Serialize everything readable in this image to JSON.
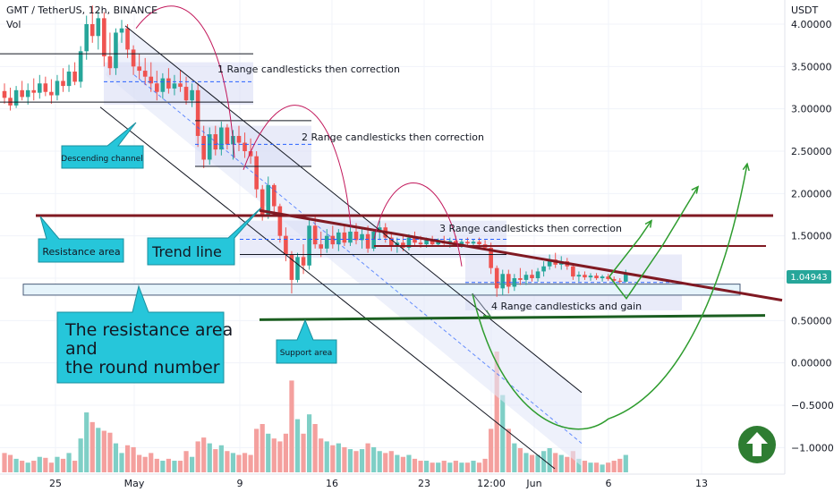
{
  "header": {
    "symbol_line": "GMT / TetherUS, 12h, BINANCE",
    "volume_label": "Vol",
    "currency_label": "USDT"
  },
  "chart_data": {
    "type": "candlestick",
    "symbol": "GMT / TetherUS",
    "interval": "12h",
    "exchange": "BINANCE",
    "y_axis": {
      "unit": "USDT",
      "range": [
        -1.3,
        4.15
      ],
      "ticks": [
        "4.00000",
        "3.50000",
        "3.00000",
        "2.50000",
        "2.00000",
        "1.50000",
        "1.00000",
        "0.50000",
        "0.00000",
        "−0.50000",
        "−1.00000"
      ]
    },
    "x_axis": {
      "ticks": [
        "25",
        "May",
        "9",
        "16",
        "23",
        "12:00",
        "Jun",
        "6",
        "13"
      ]
    },
    "last_price": "1.04943",
    "candles": [
      {
        "o": 3.21,
        "h": 3.3,
        "l": 3.06,
        "c": 3.13,
        "v": 0.2
      },
      {
        "o": 3.13,
        "h": 3.25,
        "l": 2.98,
        "c": 3.04,
        "v": 0.18
      },
      {
        "o": 3.04,
        "h": 3.27,
        "l": 3.01,
        "c": 3.22,
        "v": 0.14
      },
      {
        "o": 3.22,
        "h": 3.33,
        "l": 3.1,
        "c": 3.14,
        "v": 0.12
      },
      {
        "o": 3.14,
        "h": 3.3,
        "l": 3.05,
        "c": 3.22,
        "v": 0.1
      },
      {
        "o": 3.22,
        "h": 3.36,
        "l": 3.1,
        "c": 3.19,
        "v": 0.12
      },
      {
        "o": 3.19,
        "h": 3.4,
        "l": 3.12,
        "c": 3.3,
        "v": 0.16
      },
      {
        "o": 3.3,
        "h": 3.38,
        "l": 3.15,
        "c": 3.2,
        "v": 0.15
      },
      {
        "o": 3.2,
        "h": 3.35,
        "l": 3.06,
        "c": 3.16,
        "v": 0.1
      },
      {
        "o": 3.16,
        "h": 3.4,
        "l": 3.1,
        "c": 3.33,
        "v": 0.16
      },
      {
        "o": 3.33,
        "h": 3.48,
        "l": 3.2,
        "c": 3.27,
        "v": 0.14
      },
      {
        "o": 3.27,
        "h": 3.52,
        "l": 3.2,
        "c": 3.44,
        "v": 0.2
      },
      {
        "o": 3.44,
        "h": 3.55,
        "l": 3.28,
        "c": 3.32,
        "v": 0.12
      },
      {
        "o": 3.32,
        "h": 3.74,
        "l": 3.25,
        "c": 3.68,
        "v": 0.35
      },
      {
        "o": 3.68,
        "h": 4.1,
        "l": 3.58,
        "c": 4.0,
        "v": 0.62
      },
      {
        "o": 4.0,
        "h": 4.22,
        "l": 3.78,
        "c": 3.86,
        "v": 0.52
      },
      {
        "o": 3.86,
        "h": 4.15,
        "l": 3.7,
        "c": 4.07,
        "v": 0.46
      },
      {
        "o": 4.07,
        "h": 4.14,
        "l": 3.5,
        "c": 3.62,
        "v": 0.43
      },
      {
        "o": 3.62,
        "h": 3.9,
        "l": 3.4,
        "c": 3.48,
        "v": 0.41
      },
      {
        "o": 3.48,
        "h": 3.95,
        "l": 3.4,
        "c": 3.9,
        "v": 0.3
      },
      {
        "o": 3.9,
        "h": 4.05,
        "l": 3.78,
        "c": 3.95,
        "v": 0.2
      },
      {
        "o": 3.95,
        "h": 4.0,
        "l": 3.6,
        "c": 3.7,
        "v": 0.28
      },
      {
        "o": 3.7,
        "h": 3.75,
        "l": 3.4,
        "c": 3.5,
        "v": 0.26
      },
      {
        "o": 3.5,
        "h": 3.65,
        "l": 3.35,
        "c": 3.45,
        "v": 0.18
      },
      {
        "o": 3.45,
        "h": 3.6,
        "l": 3.28,
        "c": 3.38,
        "v": 0.16
      },
      {
        "o": 3.38,
        "h": 3.55,
        "l": 3.2,
        "c": 3.3,
        "v": 0.2
      },
      {
        "o": 3.3,
        "h": 3.45,
        "l": 3.1,
        "c": 3.2,
        "v": 0.14
      },
      {
        "o": 3.2,
        "h": 3.42,
        "l": 3.12,
        "c": 3.36,
        "v": 0.12
      },
      {
        "o": 3.36,
        "h": 3.48,
        "l": 3.18,
        "c": 3.24,
        "v": 0.14
      },
      {
        "o": 3.24,
        "h": 3.4,
        "l": 3.16,
        "c": 3.3,
        "v": 0.12
      },
      {
        "o": 3.3,
        "h": 3.46,
        "l": 3.2,
        "c": 3.26,
        "v": 0.12
      },
      {
        "o": 3.26,
        "h": 3.38,
        "l": 3.05,
        "c": 3.1,
        "v": 0.22
      },
      {
        "o": 3.1,
        "h": 3.3,
        "l": 3.02,
        "c": 3.22,
        "v": 0.16
      },
      {
        "o": 3.22,
        "h": 3.3,
        "l": 2.55,
        "c": 2.68,
        "v": 0.32
      },
      {
        "o": 2.68,
        "h": 2.8,
        "l": 2.3,
        "c": 2.4,
        "v": 0.36
      },
      {
        "o": 2.4,
        "h": 2.78,
        "l": 2.34,
        "c": 2.7,
        "v": 0.3
      },
      {
        "o": 2.7,
        "h": 2.8,
        "l": 2.45,
        "c": 2.52,
        "v": 0.24
      },
      {
        "o": 2.52,
        "h": 2.85,
        "l": 2.45,
        "c": 2.78,
        "v": 0.28
      },
      {
        "o": 2.78,
        "h": 2.82,
        "l": 2.52,
        "c": 2.58,
        "v": 0.22
      },
      {
        "o": 2.58,
        "h": 2.75,
        "l": 2.4,
        "c": 2.68,
        "v": 0.2
      },
      {
        "o": 2.68,
        "h": 2.8,
        "l": 2.5,
        "c": 2.6,
        "v": 0.18
      },
      {
        "o": 2.6,
        "h": 2.72,
        "l": 2.42,
        "c": 2.5,
        "v": 0.2
      },
      {
        "o": 2.5,
        "h": 2.65,
        "l": 2.35,
        "c": 2.44,
        "v": 0.18
      },
      {
        "o": 2.44,
        "h": 2.5,
        "l": 1.95,
        "c": 2.05,
        "v": 0.45
      },
      {
        "o": 2.05,
        "h": 2.1,
        "l": 1.68,
        "c": 1.75,
        "v": 0.5
      },
      {
        "o": 1.75,
        "h": 2.2,
        "l": 1.7,
        "c": 2.1,
        "v": 0.4
      },
      {
        "o": 2.1,
        "h": 2.12,
        "l": 1.78,
        "c": 1.85,
        "v": 0.35
      },
      {
        "o": 1.85,
        "h": 1.88,
        "l": 1.42,
        "c": 1.5,
        "v": 0.32
      },
      {
        "o": 1.5,
        "h": 1.6,
        "l": 1.2,
        "c": 1.28,
        "v": 0.4
      },
      {
        "o": 1.28,
        "h": 1.32,
        "l": 0.82,
        "c": 0.98,
        "v": 0.95
      },
      {
        "o": 0.98,
        "h": 1.3,
        "l": 0.95,
        "c": 1.25,
        "v": 0.55
      },
      {
        "o": 1.25,
        "h": 1.4,
        "l": 1.05,
        "c": 1.15,
        "v": 0.4
      },
      {
        "o": 1.15,
        "h": 1.7,
        "l": 1.1,
        "c": 1.62,
        "v": 0.6
      },
      {
        "o": 1.62,
        "h": 1.75,
        "l": 1.35,
        "c": 1.4,
        "v": 0.5
      },
      {
        "o": 1.4,
        "h": 1.55,
        "l": 1.25,
        "c": 1.35,
        "v": 0.35
      },
      {
        "o": 1.35,
        "h": 1.58,
        "l": 1.3,
        "c": 1.5,
        "v": 0.32
      },
      {
        "o": 1.5,
        "h": 1.62,
        "l": 1.35,
        "c": 1.4,
        "v": 0.28
      },
      {
        "o": 1.4,
        "h": 1.58,
        "l": 1.32,
        "c": 1.54,
        "v": 0.3
      },
      {
        "o": 1.54,
        "h": 1.62,
        "l": 1.38,
        "c": 1.42,
        "v": 0.26
      },
      {
        "o": 1.42,
        "h": 1.6,
        "l": 1.38,
        "c": 1.55,
        "v": 0.24
      },
      {
        "o": 1.55,
        "h": 1.65,
        "l": 1.4,
        "c": 1.45,
        "v": 0.22
      },
      {
        "o": 1.45,
        "h": 1.6,
        "l": 1.35,
        "c": 1.52,
        "v": 0.24
      },
      {
        "o": 1.52,
        "h": 1.62,
        "l": 1.3,
        "c": 1.35,
        "v": 0.3
      },
      {
        "o": 1.35,
        "h": 1.58,
        "l": 1.32,
        "c": 1.55,
        "v": 0.26
      },
      {
        "o": 1.55,
        "h": 1.68,
        "l": 1.45,
        "c": 1.6,
        "v": 0.22
      },
      {
        "o": 1.6,
        "h": 1.65,
        "l": 1.42,
        "c": 1.48,
        "v": 0.2
      },
      {
        "o": 1.48,
        "h": 1.55,
        "l": 1.32,
        "c": 1.38,
        "v": 0.22
      },
      {
        "o": 1.38,
        "h": 1.48,
        "l": 1.3,
        "c": 1.42,
        "v": 0.18
      },
      {
        "o": 1.42,
        "h": 1.5,
        "l": 1.32,
        "c": 1.36,
        "v": 0.16
      },
      {
        "o": 1.36,
        "h": 1.52,
        "l": 1.33,
        "c": 1.48,
        "v": 0.18
      },
      {
        "o": 1.48,
        "h": 1.55,
        "l": 1.38,
        "c": 1.42,
        "v": 0.14
      },
      {
        "o": 1.42,
        "h": 1.5,
        "l": 1.36,
        "c": 1.4,
        "v": 0.12
      },
      {
        "o": 1.4,
        "h": 1.48,
        "l": 1.36,
        "c": 1.45,
        "v": 0.12
      },
      {
        "o": 1.45,
        "h": 1.5,
        "l": 1.38,
        "c": 1.4,
        "v": 0.1
      },
      {
        "o": 1.4,
        "h": 1.47,
        "l": 1.37,
        "c": 1.43,
        "v": 0.1
      },
      {
        "o": 1.43,
        "h": 1.5,
        "l": 1.38,
        "c": 1.41,
        "v": 0.12
      },
      {
        "o": 1.41,
        "h": 1.48,
        "l": 1.36,
        "c": 1.44,
        "v": 0.1
      },
      {
        "o": 1.44,
        "h": 1.5,
        "l": 1.38,
        "c": 1.4,
        "v": 0.12
      },
      {
        "o": 1.4,
        "h": 1.46,
        "l": 1.36,
        "c": 1.43,
        "v": 0.1
      },
      {
        "o": 1.43,
        "h": 1.48,
        "l": 1.38,
        "c": 1.41,
        "v": 0.1
      },
      {
        "o": 1.41,
        "h": 1.46,
        "l": 1.36,
        "c": 1.43,
        "v": 0.12
      },
      {
        "o": 1.43,
        "h": 1.48,
        "l": 1.37,
        "c": 1.4,
        "v": 0.1
      },
      {
        "o": 1.4,
        "h": 1.45,
        "l": 1.34,
        "c": 1.36,
        "v": 0.14
      },
      {
        "o": 1.36,
        "h": 1.42,
        "l": 1.05,
        "c": 1.12,
        "v": 0.45
      },
      {
        "o": 1.12,
        "h": 1.15,
        "l": 0.78,
        "c": 0.88,
        "v": 1.25
      },
      {
        "o": 0.88,
        "h": 1.1,
        "l": 0.8,
        "c": 1.05,
        "v": 0.8
      },
      {
        "o": 1.05,
        "h": 1.1,
        "l": 0.82,
        "c": 0.9,
        "v": 0.45
      },
      {
        "o": 0.9,
        "h": 1.05,
        "l": 0.85,
        "c": 1.0,
        "v": 0.3
      },
      {
        "o": 1.0,
        "h": 1.12,
        "l": 0.92,
        "c": 0.98,
        "v": 0.25
      },
      {
        "o": 0.98,
        "h": 1.08,
        "l": 0.92,
        "c": 1.04,
        "v": 0.2
      },
      {
        "o": 1.04,
        "h": 1.1,
        "l": 0.96,
        "c": 1.0,
        "v": 0.18
      },
      {
        "o": 1.0,
        "h": 1.12,
        "l": 0.96,
        "c": 1.08,
        "v": 0.18
      },
      {
        "o": 1.08,
        "h": 1.2,
        "l": 1.02,
        "c": 1.14,
        "v": 0.22
      },
      {
        "o": 1.14,
        "h": 1.28,
        "l": 1.1,
        "c": 1.22,
        "v": 0.25
      },
      {
        "o": 1.22,
        "h": 1.3,
        "l": 1.12,
        "c": 1.16,
        "v": 0.2
      },
      {
        "o": 1.16,
        "h": 1.26,
        "l": 1.1,
        "c": 1.2,
        "v": 0.18
      },
      {
        "o": 1.2,
        "h": 1.24,
        "l": 1.1,
        "c": 1.14,
        "v": 0.16
      },
      {
        "o": 1.14,
        "h": 1.18,
        "l": 0.98,
        "c": 1.02,
        "v": 0.22
      },
      {
        "o": 1.02,
        "h": 1.08,
        "l": 0.96,
        "c": 1.04,
        "v": 0.14
      },
      {
        "o": 1.04,
        "h": 1.08,
        "l": 0.98,
        "c": 1.01,
        "v": 0.12
      },
      {
        "o": 1.01,
        "h": 1.06,
        "l": 0.97,
        "c": 1.03,
        "v": 0.1
      },
      {
        "o": 1.03,
        "h": 1.06,
        "l": 0.98,
        "c": 1.0,
        "v": 0.1
      },
      {
        "o": 1.0,
        "h": 1.04,
        "l": 0.96,
        "c": 1.02,
        "v": 0.08
      },
      {
        "o": 1.02,
        "h": 1.05,
        "l": 0.97,
        "c": 0.99,
        "v": 0.1
      },
      {
        "o": 0.99,
        "h": 1.02,
        "l": 0.95,
        "c": 0.97,
        "v": 0.12
      },
      {
        "o": 0.97,
        "h": 1.0,
        "l": 0.94,
        "c": 0.96,
        "v": 0.14
      },
      {
        "o": 0.96,
        "h": 1.1,
        "l": 0.95,
        "c": 1.05,
        "v": 0.18
      }
    ],
    "annotations": [
      {
        "id": "range1",
        "text": "1 Range candlesticks then correction"
      },
      {
        "id": "range2",
        "text": "2 Range candlesticks then correction"
      },
      {
        "id": "range3",
        "text": "3 Range candlesticks then correction"
      },
      {
        "id": "range4",
        "text": "4 Range candlesticks and gain"
      }
    ],
    "callouts": [
      {
        "id": "descending",
        "text": "Descending channel"
      },
      {
        "id": "resistance",
        "text": "Resistance area"
      },
      {
        "id": "trendline",
        "text": "Trend line"
      },
      {
        "id": "support",
        "text": "Support area"
      },
      {
        "id": "round",
        "lines": [
          "The resistance area",
          "and",
          "the round number"
        ]
      }
    ],
    "colors": {
      "up": "#26a69a",
      "down": "#ef5350",
      "vol_up": "#7fcfc6",
      "vol_down": "#f4a09e",
      "resistance_line": "#801922",
      "support_line": "#1b5e20",
      "projection": "#2e9c2e",
      "callout_fill": "#26c6da",
      "arc": "#c2185b",
      "channel": "#131722",
      "box": "#d7dbf4",
      "price_badge": "#26a69a",
      "up_button": "#2e7d32"
    }
  }
}
